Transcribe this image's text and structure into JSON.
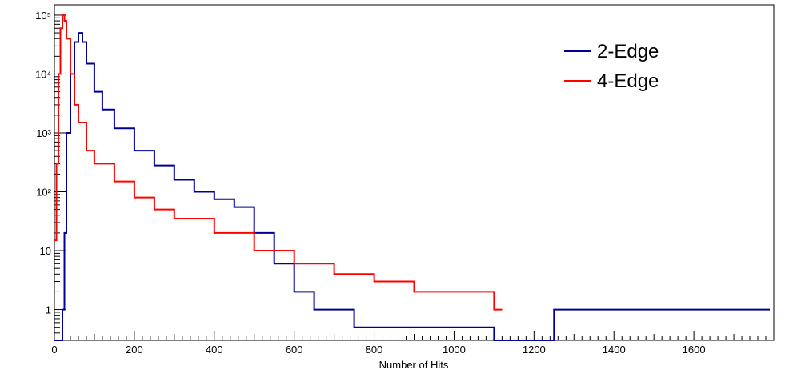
{
  "chart_data": {
    "type": "line",
    "title": "",
    "xlabel": "Number of Hits",
    "ylabel": "",
    "xlim": [
      0,
      1800
    ],
    "ylim": [
      0.3,
      150000
    ],
    "y_scale": "log",
    "grid": false,
    "legend_position": "top-right",
    "x_ticks": [
      0,
      200,
      400,
      600,
      800,
      1000,
      1200,
      1400,
      1600
    ],
    "x_tick_labels": [
      "0",
      "200",
      "400",
      "600",
      "800",
      "1000",
      "1200",
      "1400",
      "1600"
    ],
    "y_ticks": [
      1,
      10,
      100,
      1000,
      10000,
      100000
    ],
    "y_tick_labels": [
      "1",
      "10",
      "10²",
      "10³",
      "10⁴",
      "10⁵"
    ],
    "series": [
      {
        "name": "2-Edge",
        "color": "#000099",
        "x": [
          0,
          20,
          25,
          30,
          40,
          50,
          60,
          70,
          80,
          100,
          120,
          150,
          200,
          250,
          300,
          350,
          400,
          450,
          500,
          550,
          600,
          650,
          700,
          750,
          800,
          850,
          900,
          1000,
          1100,
          1250,
          1340,
          1780,
          1790
        ],
        "y": [
          0,
          1,
          20,
          1000,
          10000,
          35000,
          50000,
          35000,
          15000,
          5000,
          2500,
          1200,
          500,
          280,
          160,
          100,
          75,
          55,
          20,
          6,
          2,
          1,
          1,
          0.5,
          0.5,
          0.5,
          0.5,
          0.5,
          0,
          1,
          1,
          1,
          1
        ]
      },
      {
        "name": "4-Edge",
        "color": "#ff0000",
        "x": [
          0,
          5,
          10,
          15,
          20,
          25,
          30,
          40,
          50,
          60,
          80,
          100,
          150,
          200,
          250,
          300,
          400,
          500,
          600,
          700,
          800,
          900,
          1000,
          1100,
          1120
        ],
        "y": [
          15,
          300,
          10000,
          60000,
          100000,
          80000,
          40000,
          10000,
          3000,
          1500,
          500,
          300,
          150,
          80,
          50,
          35,
          20,
          10,
          6,
          4,
          3,
          2,
          2,
          1,
          1
        ]
      }
    ]
  }
}
